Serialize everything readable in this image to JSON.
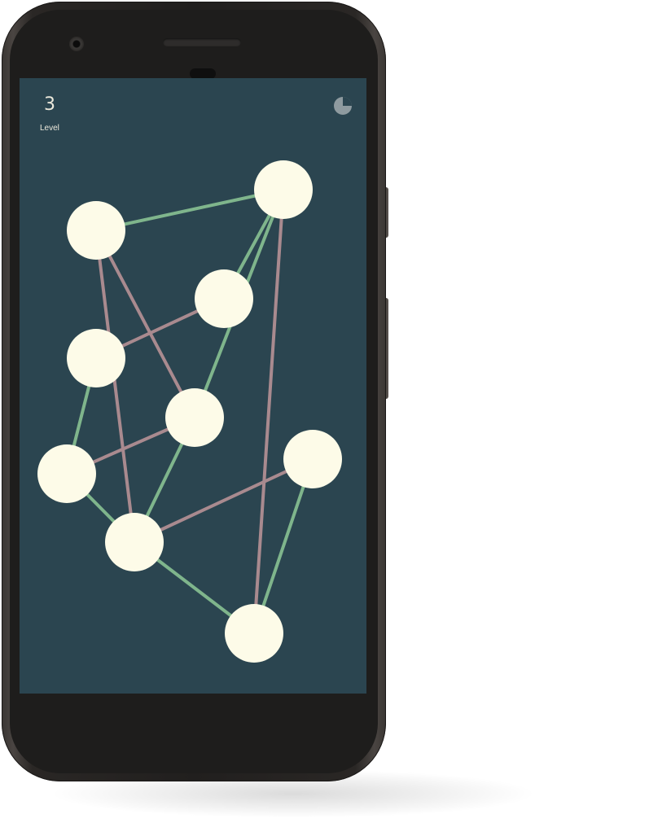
{
  "game": {
    "level_number": "3",
    "level_label": "Level",
    "progress_fraction": 0.25
  },
  "colors": {
    "screen_background": "#2b4550",
    "node_fill": "#fdfbe8",
    "edge_uncrossed": "#7fb58c",
    "edge_crossed": "#a98a8f",
    "text": "#ece9dc",
    "progress_icon": "#8e9a9f"
  },
  "puzzle": {
    "nodes": [
      {
        "id": "n1"
      },
      {
        "id": "n2"
      },
      {
        "id": "n3"
      },
      {
        "id": "n4"
      },
      {
        "id": "n5"
      },
      {
        "id": "n6"
      },
      {
        "id": "n7"
      },
      {
        "id": "n8"
      },
      {
        "id": "n9"
      }
    ],
    "edges": [
      {
        "from": "n1",
        "to": "n2",
        "state": "uncrossed"
      },
      {
        "from": "n2",
        "to": "n3",
        "state": "uncrossed"
      },
      {
        "from": "n2",
        "to": "n5",
        "state": "uncrossed"
      },
      {
        "from": "n2",
        "to": "n9",
        "state": "crossed"
      },
      {
        "from": "n1",
        "to": "n5",
        "state": "crossed"
      },
      {
        "from": "n1",
        "to": "n7",
        "state": "crossed"
      },
      {
        "from": "n3",
        "to": "n4",
        "state": "crossed"
      },
      {
        "from": "n4",
        "to": "n6",
        "state": "uncrossed"
      },
      {
        "from": "n5",
        "to": "n6",
        "state": "crossed"
      },
      {
        "from": "n5",
        "to": "n7",
        "state": "uncrossed"
      },
      {
        "from": "n6",
        "to": "n7",
        "state": "uncrossed"
      },
      {
        "from": "n7",
        "to": "n8",
        "state": "crossed"
      },
      {
        "from": "n7",
        "to": "n9",
        "state": "uncrossed"
      },
      {
        "from": "n8",
        "to": "n9",
        "state": "uncrossed"
      }
    ]
  }
}
